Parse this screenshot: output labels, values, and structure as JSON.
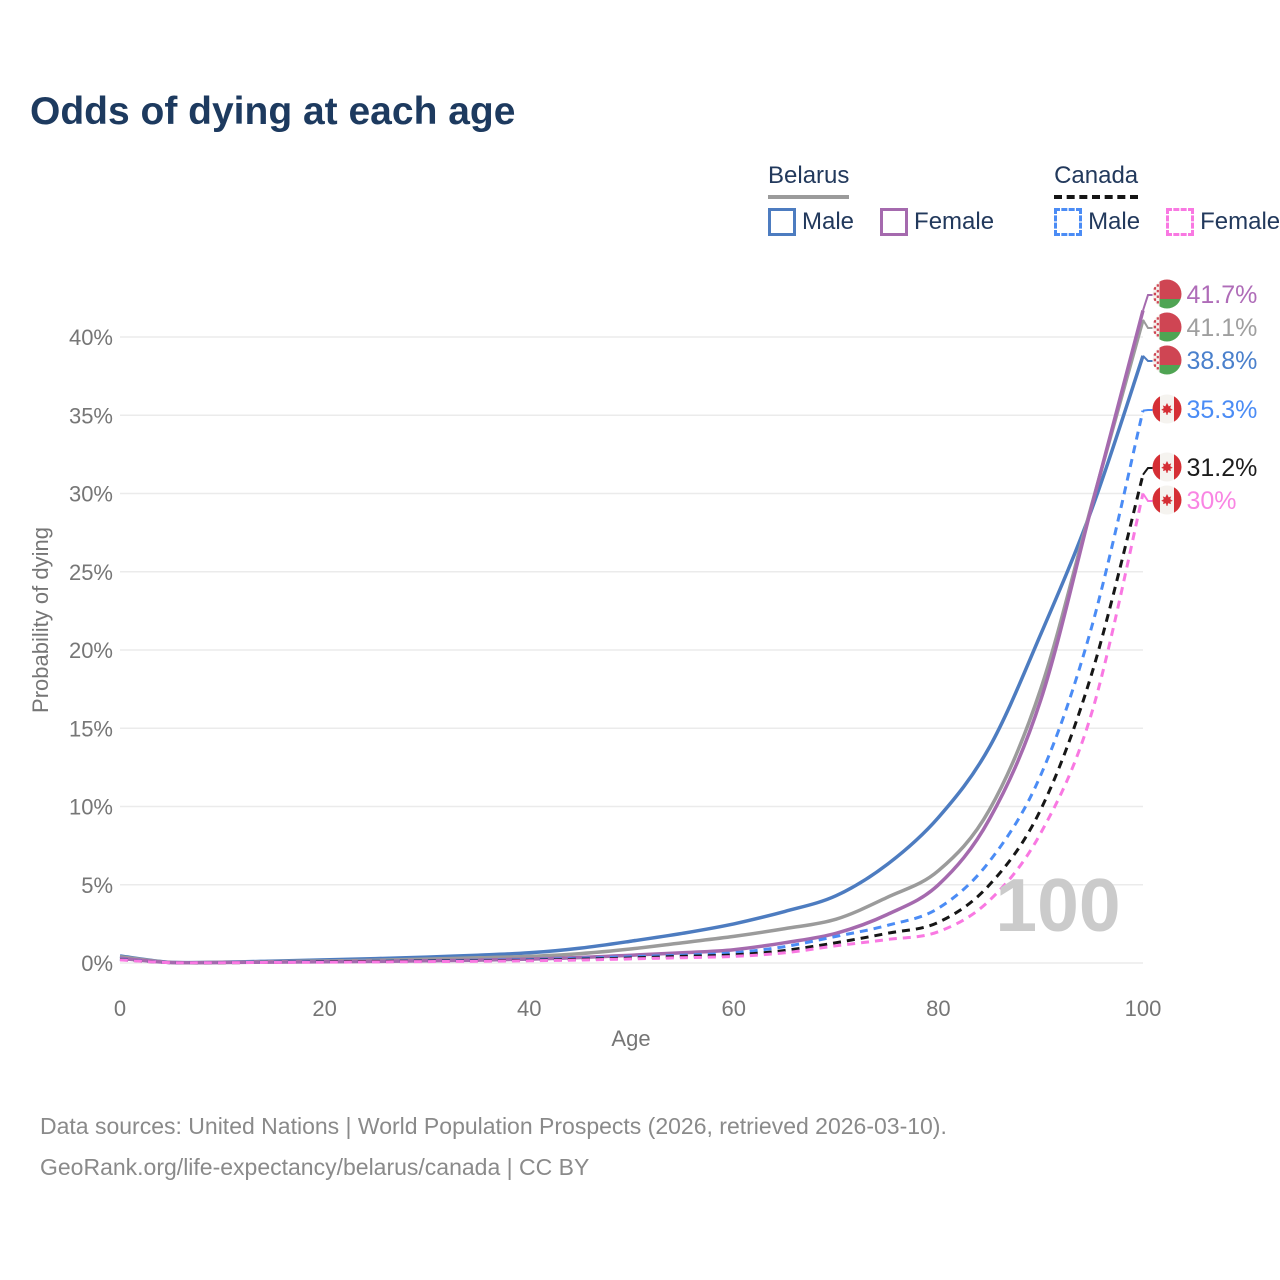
{
  "title": "Odds of dying at each age",
  "watermark": "100",
  "legend": {
    "groups": [
      {
        "name": "Belarus",
        "underline_color": "#9b9b9b",
        "underline_style": "solid"
      },
      {
        "name": "Canada",
        "underline_color": "#151515",
        "underline_style": "dashed"
      }
    ],
    "items": [
      {
        "label": "Male",
        "color": "#4d7cc0",
        "dashed": false,
        "group": 0
      },
      {
        "label": "Female",
        "color": "#a56aae",
        "dashed": false,
        "group": 0
      },
      {
        "label": "Male",
        "color": "#4b8cf5",
        "dashed": true,
        "group": 1
      },
      {
        "label": "Female",
        "color": "#f978e2",
        "dashed": true,
        "group": 1
      }
    ]
  },
  "chart_data": {
    "type": "line",
    "title": "Odds of dying at each age",
    "xlabel": "Age",
    "ylabel": "Probability of dying",
    "xlim": [
      0,
      100
    ],
    "ylim": [
      0,
      43
    ],
    "x_ticks": [
      0,
      20,
      40,
      60,
      80,
      100
    ],
    "y_ticks": [
      0,
      5,
      10,
      15,
      20,
      25,
      30,
      35,
      40
    ],
    "y_tick_suffix": "%",
    "grid": "horizontal",
    "legend_position": "top-right",
    "x": [
      0,
      5,
      10,
      15,
      20,
      25,
      30,
      35,
      40,
      45,
      50,
      55,
      60,
      65,
      70,
      75,
      80,
      85,
      90,
      95,
      100
    ],
    "series": [
      {
        "id": "belarus-male",
        "name": "Belarus Male",
        "country": "Belarus",
        "sex": "Male",
        "color": "#4d7cc0",
        "dashed": false,
        "flag": "belarus",
        "end_label": "38.8%",
        "label_color": "#4a80cc",
        "values": [
          0.45,
          0.04,
          0.05,
          0.12,
          0.2,
          0.28,
          0.38,
          0.5,
          0.65,
          0.95,
          1.4,
          1.9,
          2.5,
          3.3,
          4.3,
          6.3,
          9.3,
          13.8,
          21.0,
          29.0,
          38.8
        ]
      },
      {
        "id": "belarus-total",
        "name": "Belarus (both sexes)",
        "country": "Belarus",
        "sex": "Both",
        "color": "#9b9b9b",
        "dashed": false,
        "flag": "belarus",
        "end_label": "41.1%",
        "label_color": "#9f9f9f",
        "values": [
          0.4,
          0.03,
          0.04,
          0.09,
          0.13,
          0.18,
          0.25,
          0.33,
          0.42,
          0.6,
          0.9,
          1.3,
          1.7,
          2.2,
          2.8,
          4.2,
          5.9,
          9.8,
          17.5,
          29.3,
          41.1
        ]
      },
      {
        "id": "belarus-female",
        "name": "Belarus Female",
        "country": "Belarus",
        "sex": "Female",
        "color": "#a56aae",
        "dashed": false,
        "flag": "belarus",
        "end_label": "41.7%",
        "label_color": "#af6cb8",
        "values": [
          0.3,
          0.03,
          0.03,
          0.06,
          0.08,
          0.1,
          0.14,
          0.18,
          0.25,
          0.35,
          0.5,
          0.65,
          0.85,
          1.3,
          1.9,
          3.1,
          5.0,
          9.2,
          16.8,
          29.2,
          41.7
        ]
      },
      {
        "id": "canada-male",
        "name": "Canada Male",
        "country": "Canada",
        "sex": "Male",
        "color": "#4b8cf5",
        "dashed": true,
        "flag": "canada",
        "end_label": "35.3%",
        "label_color": "#4b8cf5",
        "values": [
          0.25,
          0.02,
          0.03,
          0.07,
          0.1,
          0.12,
          0.14,
          0.17,
          0.22,
          0.3,
          0.4,
          0.5,
          0.65,
          1.05,
          1.7,
          2.4,
          3.5,
          6.5,
          12.0,
          21.5,
          35.3
        ]
      },
      {
        "id": "canada-total",
        "name": "Canada (both sexes)",
        "country": "Canada",
        "sex": "Both",
        "color": "#161616",
        "dashed": true,
        "flag": "canada",
        "end_label": "31.2%",
        "label_color": "#1c1c1c",
        "values": [
          0.22,
          0.02,
          0.02,
          0.05,
          0.08,
          0.1,
          0.12,
          0.14,
          0.18,
          0.24,
          0.32,
          0.42,
          0.52,
          0.8,
          1.3,
          1.9,
          2.6,
          5.0,
          9.8,
          18.5,
          31.2
        ]
      },
      {
        "id": "canada-female",
        "name": "Canada Female",
        "country": "Canada",
        "sex": "Female",
        "color": "#f978e2",
        "dashed": true,
        "flag": "canada",
        "end_label": "30%",
        "label_color": "#f985e3",
        "values": [
          0.2,
          0.02,
          0.02,
          0.04,
          0.05,
          0.07,
          0.09,
          0.11,
          0.14,
          0.19,
          0.26,
          0.34,
          0.42,
          0.65,
          1.1,
          1.5,
          2.0,
          4.0,
          8.3,
          16.0,
          30.0
        ]
      }
    ]
  },
  "flag_colors": {
    "belarus_red": "#cf4553",
    "belarus_green": "#4fa453",
    "belarus_white": "#f5f3ef",
    "canada_red": "#d52f35",
    "canada_white": "#f5f3ef"
  },
  "footer": {
    "line1": "Data sources: United Nations | World Population Prospects (2026, retrieved 2026-03-10).",
    "line2": "GeoRank.org/life-expectancy/belarus/canada | CC BY"
  }
}
